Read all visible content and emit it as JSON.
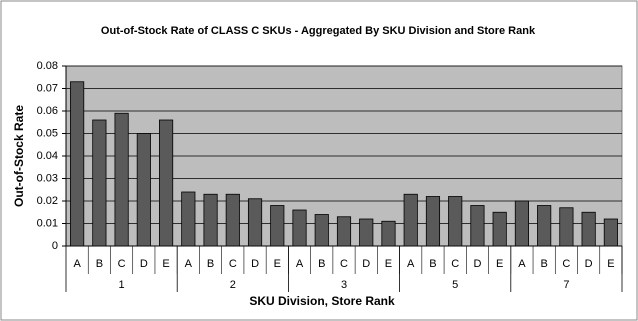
{
  "chart_data": {
    "type": "bar",
    "title": "Out-of-Stock Rate of CLASS C SKUs - Aggregated By SKU Division and Store Rank",
    "x_label": "SKU Division, Store Rank",
    "y_label": "Out-of-Stock Rate",
    "categories": [
      "A",
      "B",
      "C",
      "D",
      "E",
      "A",
      "B",
      "C",
      "D",
      "E",
      "A",
      "B",
      "C",
      "D",
      "E",
      "A",
      "B",
      "C",
      "D",
      "E",
      "A",
      "B",
      "C",
      "D",
      "E"
    ],
    "groups": [
      "1",
      "2",
      "3",
      "5",
      "7"
    ],
    "values": [
      0.073,
      0.056,
      0.059,
      0.05,
      0.056,
      0.024,
      0.023,
      0.023,
      0.021,
      0.018,
      0.016,
      0.014,
      0.013,
      0.012,
      0.011,
      0.023,
      0.022,
      0.022,
      0.018,
      0.015,
      0.02,
      0.018,
      0.017,
      0.015,
      0.012
    ],
    "color": "#5a5a5a",
    "ylim": [
      0,
      0.08
    ],
    "yticks": [
      0,
      0.01,
      0.02,
      0.03,
      0.04,
      0.05,
      0.06,
      0.07,
      0.08
    ],
    "grid": true
  }
}
